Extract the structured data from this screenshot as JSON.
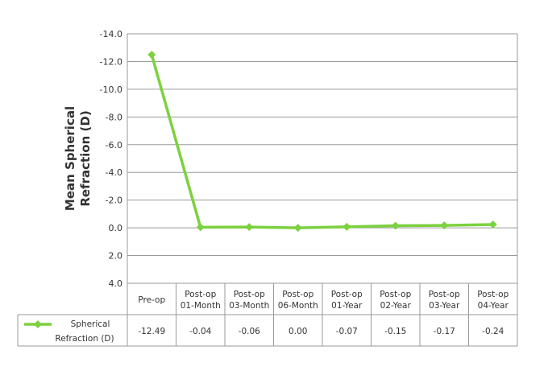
{
  "chart_data": {
    "type": "line",
    "ylabel_line1": "Mean Spherical",
    "ylabel_line2": "Refraction (D)",
    "y_ticks": [
      "-14.0",
      "-12.0",
      "-10.0",
      "-8.0",
      "-6.0",
      "-4.0",
      "-2.0",
      "0.0",
      "2.0",
      "4.0"
    ],
    "ylim": [
      -14,
      4
    ],
    "y_axis_inverted": true,
    "grid": true,
    "categories": [
      [
        "Pre-op"
      ],
      [
        "Post-op",
        "01-Month"
      ],
      [
        "Post-op",
        "03-Month"
      ],
      [
        "Post-op",
        "06-Month"
      ],
      [
        "Post-op",
        "01-Year"
      ],
      [
        "Post-op",
        "02-Year"
      ],
      [
        "Post-op",
        "03-Year"
      ],
      [
        "Post-op",
        "04-Year"
      ]
    ],
    "series": [
      {
        "name_line1": "Spherical",
        "name_line2": "Refraction (D)",
        "color": "#7cd13f",
        "marker": "diamond",
        "values": [
          -12.49,
          -0.04,
          -0.06,
          0.0,
          -0.07,
          -0.15,
          -0.17,
          -0.24
        ],
        "labels": [
          "-12.49",
          "-0.04",
          "-0.06",
          "0.00",
          "-0.07",
          "-0.15",
          "-0.17",
          "-0.24"
        ]
      }
    ],
    "legend_placement": "data-table"
  }
}
